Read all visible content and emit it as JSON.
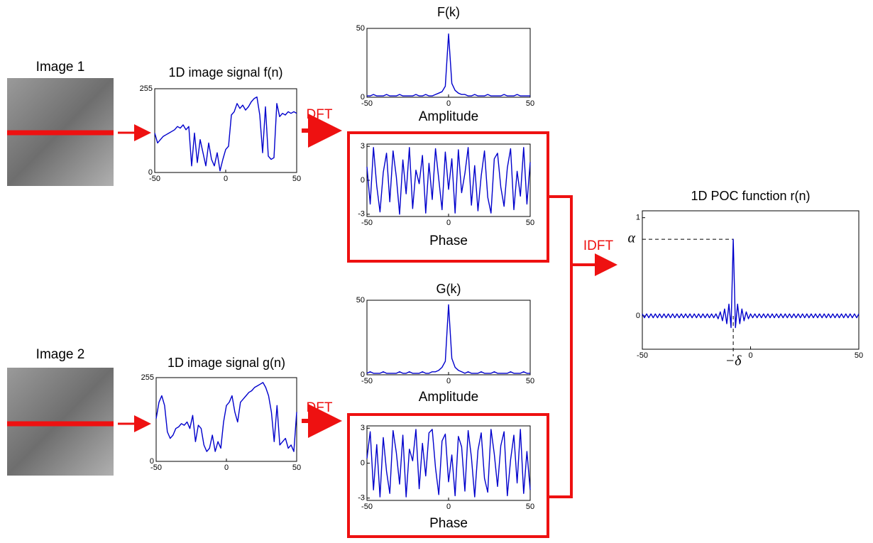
{
  "labels": {
    "image1": "Image 1",
    "image2": "Image 2",
    "dft1": "DFT",
    "dft2": "DFT",
    "idft": "IDFT"
  },
  "chart_data": [
    {
      "type": "line",
      "title": "1D image signal f(n)",
      "color": "#0000cc",
      "xlim": [
        -50,
        50
      ],
      "ylim": [
        0,
        255
      ],
      "xticks": [
        -50,
        0,
        50
      ],
      "yticks": [
        0,
        255
      ],
      "x": [
        -50,
        -48,
        -46,
        -44,
        -42,
        -40,
        -38,
        -36,
        -34,
        -32,
        -30,
        -28,
        -26,
        -24,
        -22,
        -20,
        -18,
        -16,
        -14,
        -12,
        -10,
        -8,
        -6,
        -4,
        -2,
        0,
        2,
        4,
        6,
        8,
        10,
        12,
        14,
        16,
        18,
        20,
        22,
        24,
        26,
        28,
        30,
        32,
        34,
        36,
        38,
        40,
        42,
        44,
        46,
        48,
        50
      ],
      "values": [
        120,
        90,
        100,
        110,
        115,
        120,
        125,
        130,
        140,
        135,
        145,
        130,
        140,
        20,
        120,
        30,
        100,
        60,
        20,
        90,
        40,
        20,
        60,
        5,
        40,
        70,
        80,
        175,
        185,
        210,
        195,
        205,
        190,
        200,
        215,
        225,
        230,
        175,
        60,
        200,
        50,
        40,
        45,
        210,
        170,
        180,
        175,
        185,
        180,
        185,
        180
      ]
    },
    {
      "type": "line",
      "title": "F(k)",
      "xlabel": "Amplitude",
      "color": "#0000cc",
      "xlim": [
        -50,
        50
      ],
      "ylim": [
        0,
        50
      ],
      "xticks": [
        -50,
        0,
        50
      ],
      "yticks": [
        0,
        50
      ],
      "x": [
        -50,
        -48,
        -46,
        -44,
        -42,
        -40,
        -38,
        -36,
        -34,
        -32,
        -30,
        -28,
        -26,
        -24,
        -22,
        -20,
        -18,
        -16,
        -14,
        -12,
        -10,
        -8,
        -6,
        -4,
        -2,
        0,
        2,
        4,
        6,
        8,
        10,
        12,
        14,
        16,
        18,
        20,
        22,
        24,
        26,
        28,
        30,
        32,
        34,
        36,
        38,
        40,
        42,
        44,
        46,
        48,
        50
      ],
      "values": [
        1,
        1,
        2,
        1,
        1,
        1,
        2,
        1,
        1,
        1,
        2,
        1,
        1,
        1,
        1,
        2,
        1,
        1,
        2,
        1,
        1,
        2,
        3,
        4,
        8,
        46,
        10,
        5,
        3,
        2,
        2,
        1,
        1,
        2,
        1,
        1,
        1,
        2,
        1,
        1,
        1,
        1,
        2,
        1,
        1,
        1,
        2,
        1,
        1,
        1,
        1
      ]
    },
    {
      "type": "line",
      "xlabel": "Phase",
      "color": "#0000cc",
      "xlim": [
        -50,
        50
      ],
      "ylim": [
        -3.2,
        3.2
      ],
      "xticks": [
        -50,
        0,
        50
      ],
      "yticks": [
        -3,
        0,
        3
      ],
      "x": [
        -50,
        -48,
        -46,
        -44,
        -42,
        -40,
        -38,
        -36,
        -34,
        -32,
        -30,
        -28,
        -26,
        -24,
        -22,
        -20,
        -18,
        -16,
        -14,
        -12,
        -10,
        -8,
        -6,
        -4,
        -2,
        0,
        2,
        4,
        6,
        8,
        10,
        12,
        14,
        16,
        18,
        20,
        22,
        24,
        26,
        28,
        30,
        32,
        34,
        36,
        38,
        40,
        42,
        44,
        46,
        48,
        50
      ],
      "values": [
        1.2,
        -2.1,
        2.9,
        -0.5,
        -2.8,
        0.7,
        2.4,
        -1.9,
        2.6,
        0.3,
        -3.0,
        1.8,
        -1.2,
        2.9,
        -2.5,
        0.9,
        -0.3,
        2.2,
        -2.9,
        1.5,
        -1.7,
        2.8,
        0.1,
        -2.6,
        2.5,
        -0.8,
        1.9,
        -2.9,
        2.7,
        -1.1,
        0.6,
        2.9,
        -2.2,
        1.3,
        -2.7,
        0.4,
        2.6,
        -1.5,
        -2.9,
        1.9,
        2.4,
        -0.6,
        -2.3,
        1.1,
        2.8,
        -2.6,
        0.8,
        -1.4,
        2.9,
        -2.1,
        1.6
      ]
    },
    {
      "type": "line",
      "title": "1D image signal g(n)",
      "color": "#0000cc",
      "xlim": [
        -50,
        50
      ],
      "ylim": [
        0,
        255
      ],
      "xticks": [
        -50,
        0,
        50
      ],
      "yticks": [
        0,
        255
      ],
      "x": [
        -50,
        -48,
        -46,
        -44,
        -42,
        -40,
        -38,
        -36,
        -34,
        -32,
        -30,
        -28,
        -26,
        -24,
        -22,
        -20,
        -18,
        -16,
        -14,
        -12,
        -10,
        -8,
        -6,
        -4,
        -2,
        0,
        2,
        4,
        6,
        8,
        10,
        12,
        14,
        16,
        18,
        20,
        22,
        24,
        26,
        28,
        30,
        32,
        34,
        36,
        38,
        40,
        42,
        44,
        46,
        48,
        50
      ],
      "values": [
        130,
        180,
        200,
        170,
        90,
        70,
        80,
        100,
        105,
        115,
        110,
        120,
        100,
        140,
        60,
        110,
        100,
        50,
        30,
        40,
        80,
        30,
        60,
        40,
        120,
        170,
        180,
        200,
        150,
        120,
        180,
        190,
        200,
        210,
        215,
        225,
        230,
        235,
        240,
        225,
        200,
        150,
        60,
        170,
        50,
        60,
        70,
        40,
        50,
        30,
        150
      ]
    },
    {
      "type": "line",
      "title": "G(k)",
      "xlabel": "Amplitude",
      "color": "#0000cc",
      "xlim": [
        -50,
        50
      ],
      "ylim": [
        0,
        50
      ],
      "xticks": [
        -50,
        0,
        50
      ],
      "yticks": [
        0,
        50
      ],
      "x": [
        -50,
        -48,
        -46,
        -44,
        -42,
        -40,
        -38,
        -36,
        -34,
        -32,
        -30,
        -28,
        -26,
        -24,
        -22,
        -20,
        -18,
        -16,
        -14,
        -12,
        -10,
        -8,
        -6,
        -4,
        -2,
        0,
        2,
        4,
        6,
        8,
        10,
        12,
        14,
        16,
        18,
        20,
        22,
        24,
        26,
        28,
        30,
        32,
        34,
        36,
        38,
        40,
        42,
        44,
        46,
        48,
        50
      ],
      "values": [
        1,
        2,
        1,
        1,
        1,
        2,
        1,
        1,
        1,
        1,
        2,
        1,
        1,
        2,
        1,
        1,
        1,
        2,
        1,
        1,
        2,
        2,
        3,
        5,
        9,
        47,
        11,
        5,
        3,
        2,
        1,
        2,
        1,
        1,
        1,
        2,
        1,
        1,
        1,
        2,
        1,
        1,
        1,
        1,
        2,
        1,
        1,
        1,
        2,
        1,
        1
      ]
    },
    {
      "type": "line",
      "xlabel": "Phase",
      "color": "#0000cc",
      "xlim": [
        -50,
        50
      ],
      "ylim": [
        -3.2,
        3.2
      ],
      "xticks": [
        -50,
        0,
        50
      ],
      "yticks": [
        -3,
        0,
        3
      ],
      "x": [
        -50,
        -48,
        -46,
        -44,
        -42,
        -40,
        -38,
        -36,
        -34,
        -32,
        -30,
        -28,
        -26,
        -24,
        -22,
        -20,
        -18,
        -16,
        -14,
        -12,
        -10,
        -8,
        -6,
        -4,
        -2,
        0,
        2,
        4,
        6,
        8,
        10,
        12,
        14,
        16,
        18,
        20,
        22,
        24,
        26,
        28,
        30,
        32,
        34,
        36,
        38,
        40,
        42,
        44,
        46,
        48,
        50
      ],
      "values": [
        0.4,
        2.7,
        -2.3,
        1.6,
        -2.9,
        2.2,
        -0.7,
        -2.6,
        2.8,
        0.9,
        -1.8,
        2.4,
        -2.9,
        1.2,
        0.2,
        2.9,
        -2.2,
        1.7,
        -1.1,
        2.6,
        2.9,
        -0.4,
        -2.7,
        1.9,
        2.5,
        -1.6,
        0.7,
        -2.8,
        2.3,
        1.4,
        -2.4,
        2.8,
        0.5,
        -2.9,
        1.1,
        2.6,
        -1.3,
        -2.5,
        2.9,
        0.8,
        -2.0,
        1.5,
        2.7,
        -2.8,
        0.3,
        2.4,
        -1.7,
        2.9,
        -2.6,
        1.0,
        -2.3
      ]
    },
    {
      "type": "line",
      "title": "1D POC function r(n)",
      "color": "#0000cc",
      "xlim": [
        -50,
        50
      ],
      "ylim": [
        -0.34,
        1.07
      ],
      "xticks": [
        -50,
        0,
        50
      ],
      "yticks": [
        0,
        1
      ],
      "annotations": [
        {
          "text": "α",
          "y": 0.78
        },
        {
          "text": "−δ",
          "x": -8
        }
      ],
      "x": [
        -50,
        -49,
        -48,
        -47,
        -46,
        -45,
        -44,
        -43,
        -42,
        -41,
        -40,
        -39,
        -38,
        -37,
        -36,
        -35,
        -34,
        -33,
        -32,
        -31,
        -30,
        -29,
        -28,
        -27,
        -26,
        -25,
        -24,
        -23,
        -22,
        -21,
        -20,
        -19,
        -18,
        -17,
        -16,
        -15,
        -14,
        -13,
        -12,
        -11,
        -10,
        -9,
        -8,
        -7,
        -6,
        -5,
        -4,
        -3,
        -2,
        -1,
        0,
        1,
        2,
        3,
        4,
        5,
        6,
        7,
        8,
        9,
        10,
        11,
        12,
        13,
        14,
        15,
        16,
        17,
        18,
        19,
        20,
        21,
        22,
        23,
        24,
        25,
        26,
        27,
        28,
        29,
        30,
        31,
        32,
        33,
        34,
        35,
        36,
        37,
        38,
        39,
        40,
        41,
        42,
        43,
        44,
        45,
        46,
        47,
        48,
        49,
        50
      ],
      "values": [
        0.02,
        -0.02,
        0.02,
        -0.02,
        0.02,
        -0.02,
        0.02,
        -0.02,
        0.02,
        -0.02,
        0.02,
        -0.02,
        0.02,
        -0.02,
        0.02,
        -0.02,
        0.02,
        -0.02,
        0.02,
        -0.02,
        0.02,
        -0.02,
        0.02,
        -0.02,
        0.02,
        -0.02,
        0.02,
        -0.02,
        0.02,
        -0.02,
        0.02,
        -0.02,
        0.02,
        -0.02,
        0.02,
        -0.03,
        0.04,
        -0.05,
        0.07,
        -0.08,
        0.12,
        -0.12,
        0.78,
        -0.12,
        0.12,
        -0.08,
        0.07,
        -0.05,
        0.04,
        -0.03,
        0.02,
        -0.02,
        0.02,
        -0.02,
        0.02,
        -0.02,
        0.02,
        -0.02,
        0.02,
        -0.02,
        0.02,
        -0.02,
        0.02,
        -0.02,
        0.02,
        -0.02,
        0.02,
        -0.02,
        0.02,
        -0.02,
        0.02,
        -0.02,
        0.02,
        -0.02,
        0.02,
        -0.02,
        0.02,
        -0.02,
        0.02,
        -0.02,
        0.02,
        -0.02,
        0.02,
        -0.02,
        0.02,
        -0.02,
        0.02,
        -0.02,
        0.02,
        -0.02,
        0.02,
        -0.02,
        0.02,
        -0.02,
        0.02,
        -0.02,
        0.02,
        -0.02,
        0.02,
        -0.02,
        0.02
      ]
    }
  ]
}
